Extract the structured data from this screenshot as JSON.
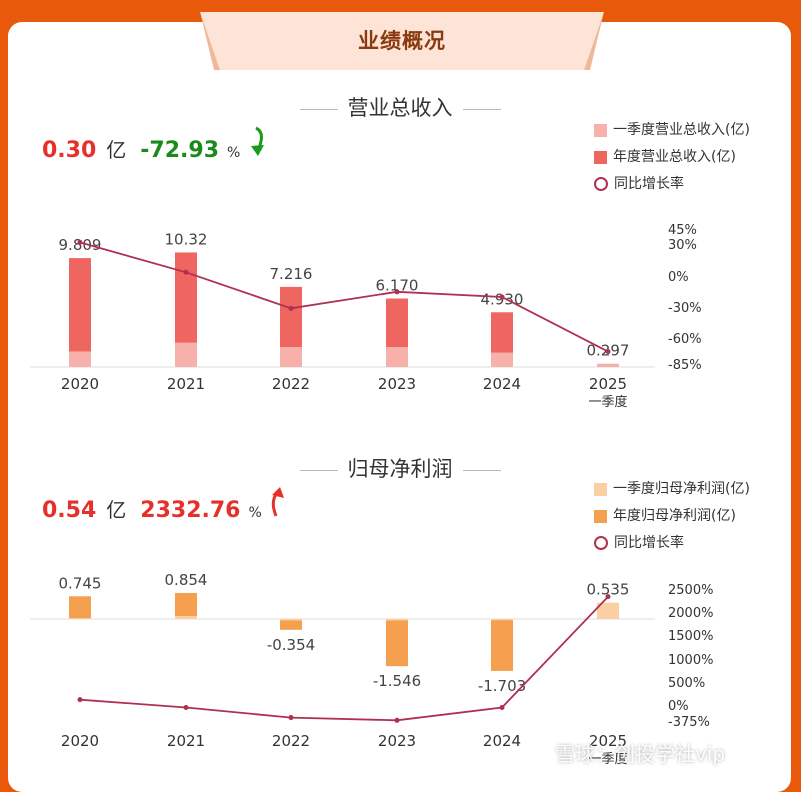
{
  "header": {
    "title": "业绩概况"
  },
  "revenue": {
    "section_title": "营业总收入",
    "kpi_value": "0.30",
    "kpi_unit": "亿",
    "kpi_change": "-72.93",
    "kpi_pct_sign": "%",
    "legend": [
      "一季度营业总收入(亿)",
      "年度营业总收入(亿)",
      "同比增长率"
    ]
  },
  "profit": {
    "section_title": "归母净利润",
    "kpi_value": "0.54",
    "kpi_unit": "亿",
    "kpi_change": "2332.76",
    "kpi_pct_sign": "%",
    "legend": [
      "一季度归母净利润(亿)",
      "年度归母净利润(亿)",
      "同比增长率"
    ]
  },
  "colors": {
    "revenue_quarter": "#f7b1aa",
    "revenue_annual": "#ef6560",
    "profit_quarter": "#fbcfa3",
    "profit_annual": "#f5a04f",
    "growth_line": "#b03050",
    "kpi_red": "#e8302a",
    "kpi_green": "#1a8a1a",
    "background": "#e8590c"
  },
  "watermark": "雪球：创投学社vip",
  "chart_data": [
    {
      "type": "bar",
      "categories": [
        "2020",
        "2021",
        "2022",
        "2023",
        "2024",
        "2025\n一季度"
      ],
      "series": [
        {
          "name": "一季度营业总收入(亿)",
          "values": [
            1.4,
            2.2,
            1.8,
            1.8,
            1.3,
            0.297
          ]
        },
        {
          "name": "年度营业总收入(亿)",
          "values": [
            9.809,
            10.32,
            7.216,
            6.17,
            4.93,
            null
          ]
        },
        {
          "name": "同比增长率",
          "type": "line",
          "axis": "right",
          "values": [
            33,
            4,
            -31,
            -15,
            -20,
            -73
          ]
        }
      ],
      "data_labels": [
        "9.809",
        "10.32",
        "7.216",
        "6.170",
        "4.930",
        "0.297"
      ],
      "right_axis_ticks": [
        "45%",
        "30%",
        "0%",
        "-30%",
        "-60%",
        "-85%"
      ],
      "ylim": [
        0,
        10.5
      ],
      "y2lim": [
        -85,
        45
      ]
    },
    {
      "type": "bar",
      "categories": [
        "2020",
        "2021",
        "2022",
        "2023",
        "2024",
        "2025\n一季度"
      ],
      "series": [
        {
          "name": "一季度归母净利润(亿)",
          "values": [
            0.03,
            0.1,
            -0.05,
            -0.05,
            -0.04,
            0.535
          ]
        },
        {
          "name": "年度归母净利润(亿)",
          "values": [
            0.745,
            0.854,
            -0.354,
            -1.546,
            -1.703,
            null
          ]
        },
        {
          "name": "同比增长率",
          "type": "line",
          "axis": "right",
          "values": [
            90,
            -80,
            -300,
            -360,
            -80,
            2333
          ]
        }
      ],
      "data_labels": [
        "0.745",
        "0.854",
        "-0.354",
        "-1.546",
        "-1.703",
        "0.535"
      ],
      "right_axis_ticks": [
        "2500%",
        "2000%",
        "1500%",
        "1000%",
        "500%",
        "0%",
        "-375%"
      ],
      "ylim": [
        -1.8,
        0.95
      ],
      "y2lim": [
        -375,
        2500
      ]
    }
  ]
}
